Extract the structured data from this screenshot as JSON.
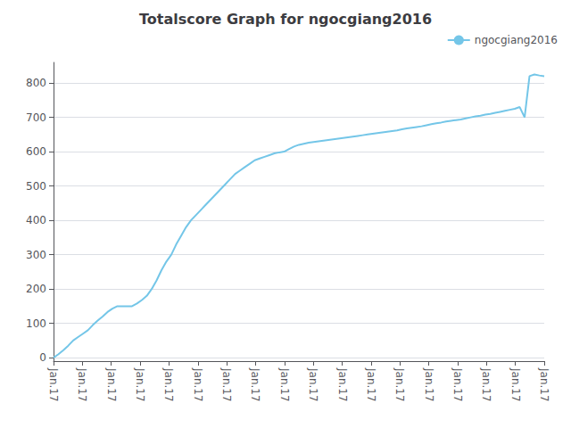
{
  "chart_data": {
    "type": "line",
    "title": "Totalscore Graph for ngocgiang2016",
    "x": [
      0,
      1,
      2,
      3,
      4,
      5,
      6,
      7,
      8,
      9,
      10,
      11,
      12,
      13,
      14,
      15,
      16,
      17,
      18,
      19,
      20,
      21,
      22,
      23,
      24,
      25,
      26,
      27,
      28,
      29,
      30,
      31,
      32,
      33,
      34,
      35,
      36,
      37,
      38,
      39,
      40,
      41,
      42,
      43,
      44,
      45,
      46,
      47,
      48,
      49,
      50,
      51,
      52,
      53,
      54,
      55,
      56,
      57,
      58,
      59,
      60,
      61,
      62,
      63,
      64,
      65,
      66,
      67,
      68,
      69,
      70,
      71,
      72,
      73,
      74,
      75,
      76,
      77,
      78,
      79,
      80,
      81,
      82,
      83,
      84,
      85,
      86,
      87,
      88,
      89,
      90,
      91,
      92,
      93,
      94,
      95,
      96,
      97,
      98,
      99,
      100
    ],
    "series": [
      {
        "name": "ngocgiang2016",
        "color": "#74c6e8",
        "values": [
          0,
          10,
          22,
          35,
          50,
          60,
          70,
          80,
          95,
          108,
          120,
          133,
          143,
          150,
          150,
          150,
          150,
          158,
          168,
          180,
          200,
          225,
          255,
          280,
          300,
          330,
          355,
          380,
          400,
          415,
          430,
          445,
          460,
          475,
          490,
          505,
          520,
          535,
          545,
          555,
          565,
          575,
          580,
          585,
          590,
          595,
          598,
          600,
          608,
          615,
          620,
          623,
          626,
          628,
          630,
          632,
          634,
          636,
          638,
          640,
          642,
          644,
          646,
          648,
          650,
          652,
          654,
          656,
          658,
          660,
          662,
          665,
          668,
          670,
          672,
          674,
          677,
          680,
          683,
          685,
          688,
          690,
          692,
          694,
          697,
          700,
          703,
          705,
          708,
          710,
          713,
          716,
          719,
          722,
          725,
          730,
          700,
          820,
          825,
          822,
          820
        ]
      }
    ],
    "xlim": [
      0,
      100
    ],
    "xticks": [
      {
        "value": 0,
        "label": "Jan.17"
      },
      {
        "value": 5.882352941176471,
        "label": "Jan.17"
      },
      {
        "value": 11.764705882352942,
        "label": "Jan.17"
      },
      {
        "value": 17.647058823529413,
        "label": "Jan.17"
      },
      {
        "value": 23.529411764705884,
        "label": "Jan.17"
      },
      {
        "value": 29.41176470588235,
        "label": "Jan.17"
      },
      {
        "value": 35.294117647058826,
        "label": "Jan.17"
      },
      {
        "value": 41.1764705882353,
        "label": "Jan.17"
      },
      {
        "value": 47.05882352941177,
        "label": "Jan.17"
      },
      {
        "value": 52.94117647058824,
        "label": "Jan.17"
      },
      {
        "value": 58.8235294117647,
        "label": "Jan.17"
      },
      {
        "value": 64.70588235294117,
        "label": "Jan.17"
      },
      {
        "value": 70.58823529411765,
        "label": "Jan.17"
      },
      {
        "value": 76.47058823529413,
        "label": "Jan.17"
      },
      {
        "value": 82.35294117647058,
        "label": "Jan.17"
      },
      {
        "value": 88.23529411764706,
        "label": "Jan.17"
      },
      {
        "value": 94.11764705882354,
        "label": "Jan.17"
      },
      {
        "value": 100,
        "label": "Jan.17"
      }
    ],
    "ylim": [
      -10,
      860
    ],
    "yticks": [
      0,
      100,
      200,
      300,
      400,
      500,
      600,
      700,
      800
    ],
    "grid": true,
    "legend": "upper right"
  }
}
